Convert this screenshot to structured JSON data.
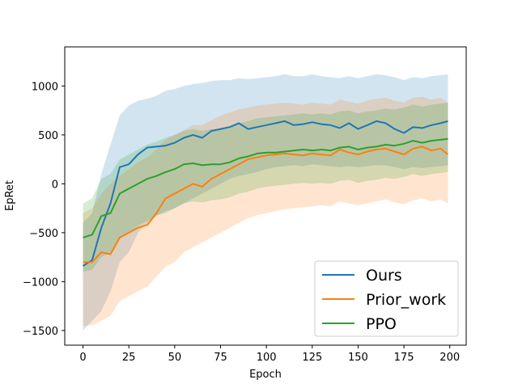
{
  "chart_data": {
    "type": "line",
    "xlabel": "Epoch",
    "ylabel": "EpRet",
    "xlim": [
      -9.95,
      208.95
    ],
    "ylim": [
      -1650,
      1400
    ],
    "xticks": [
      0,
      25,
      50,
      75,
      100,
      125,
      150,
      175,
      200
    ],
    "yticks": [
      -1500,
      -1000,
      -500,
      0,
      500,
      1000
    ],
    "x": [
      0,
      5,
      10,
      15,
      20,
      25,
      30,
      35,
      40,
      45,
      50,
      55,
      60,
      65,
      70,
      75,
      80,
      85,
      90,
      95,
      100,
      105,
      110,
      115,
      120,
      125,
      130,
      135,
      140,
      145,
      150,
      155,
      160,
      165,
      170,
      175,
      180,
      185,
      190,
      195,
      199
    ],
    "legend": {
      "position": "lower-right"
    },
    "series": [
      {
        "name": "Ours",
        "color": "#1f77b4",
        "values": [
          -840,
          -780,
          -450,
          -200,
          170,
          200,
          300,
          370,
          380,
          390,
          420,
          470,
          500,
          470,
          540,
          560,
          580,
          620,
          560,
          580,
          600,
          620,
          640,
          600,
          610,
          630,
          610,
          600,
          570,
          620,
          560,
          600,
          640,
          620,
          560,
          520,
          580,
          570,
          600,
          620,
          640
        ],
        "lower": [
          -1500,
          -1400,
          -1300,
          -1100,
          -800,
          -700,
          -500,
          -400,
          -320,
          -300,
          -250,
          -200,
          -150,
          -100,
          -50,
          0,
          50,
          80,
          100,
          120,
          150,
          170,
          180,
          190,
          180,
          200,
          190,
          180,
          170,
          180,
          170,
          180,
          190,
          190,
          170,
          150,
          170,
          160,
          170,
          180,
          190
        ],
        "upper": [
          -400,
          -300,
          100,
          400,
          700,
          800,
          850,
          870,
          900,
          950,
          970,
          1000,
          1020,
          1030,
          1050,
          1060,
          1060,
          1080,
          1070,
          1080,
          1090,
          1100,
          1120,
          1100,
          1100,
          1120,
          1100,
          1090,
          1080,
          1100,
          1080,
          1100,
          1120,
          1110,
          1090,
          1060,
          1090,
          1080,
          1100,
          1110,
          1120
        ]
      },
      {
        "name": "Prior_work",
        "color": "#ff7f0e",
        "values": [
          -800,
          -800,
          -700,
          -720,
          -550,
          -500,
          -450,
          -420,
          -300,
          -150,
          -100,
          -50,
          0,
          -30,
          50,
          100,
          150,
          200,
          250,
          270,
          290,
          300,
          310,
          300,
          290,
          310,
          300,
          290,
          350,
          320,
          300,
          330,
          350,
          360,
          330,
          300,
          360,
          380,
          340,
          360,
          300
        ],
        "lower": [
          -1450,
          -1450,
          -1400,
          -1350,
          -1200,
          -1150,
          -1100,
          -1050,
          -950,
          -850,
          -800,
          -700,
          -650,
          -600,
          -550,
          -500,
          -450,
          -400,
          -350,
          -320,
          -300,
          -280,
          -260,
          -250,
          -240,
          -230,
          -220,
          -230,
          -180,
          -200,
          -220,
          -200,
          -180,
          -160,
          -190,
          -210,
          -170,
          -150,
          -180,
          -160,
          -200
        ],
        "upper": [
          -300,
          -250,
          -100,
          0,
          80,
          150,
          220,
          270,
          350,
          450,
          500,
          550,
          600,
          600,
          650,
          700,
          730,
          760,
          780,
          800,
          810,
          820,
          830,
          820,
          810,
          830,
          820,
          810,
          860,
          840,
          820,
          850,
          870,
          880,
          850,
          830,
          880,
          890,
          860,
          880,
          830
        ]
      },
      {
        "name": "PPO",
        "color": "#2ca02c",
        "values": [
          -550,
          -520,
          -330,
          -300,
          -100,
          -50,
          0,
          50,
          80,
          120,
          150,
          200,
          210,
          190,
          200,
          200,
          220,
          260,
          280,
          310,
          320,
          320,
          330,
          340,
          350,
          340,
          350,
          340,
          370,
          380,
          350,
          370,
          380,
          400,
          390,
          410,
          440,
          420,
          440,
          450,
          460
        ],
        "lower": [
          -900,
          -880,
          -750,
          -700,
          -550,
          -500,
          -430,
          -380,
          -330,
          -280,
          -250,
          -200,
          -180,
          -190,
          -170,
          -160,
          -140,
          -100,
          -80,
          -50,
          -30,
          -20,
          -10,
          0,
          10,
          0,
          10,
          0,
          30,
          40,
          10,
          30,
          40,
          60,
          50,
          70,
          100,
          80,
          100,
          110,
          120
        ],
        "upper": [
          -200,
          -150,
          50,
          100,
          250,
          300,
          350,
          400,
          430,
          470,
          500,
          540,
          560,
          540,
          560,
          560,
          580,
          620,
          640,
          670,
          680,
          690,
          700,
          710,
          720,
          710,
          720,
          710,
          740,
          750,
          720,
          740,
          750,
          770,
          760,
          780,
          810,
          790,
          810,
          820,
          830
        ]
      }
    ]
  }
}
